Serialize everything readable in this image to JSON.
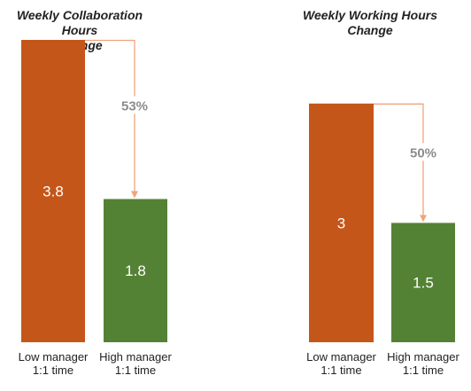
{
  "colors": {
    "low": "#c5561a",
    "high": "#548235",
    "arrow": "#f0a47a",
    "change_text": "#8c8c8c",
    "value_text": "#ffffff"
  },
  "chart_data": [
    {
      "type": "bar",
      "title_lines": [
        "Weekly Collaboration Hours",
        "Change"
      ],
      "categories": [
        {
          "lines": [
            "Low manager",
            "1:1 time"
          ]
        },
        {
          "lines": [
            "High manager",
            "1:1 time"
          ]
        }
      ],
      "values": [
        3.8,
        1.8
      ],
      "value_labels": [
        "3.8",
        "1.8"
      ],
      "change_label": "53%",
      "ylim": [
        0,
        3.8
      ]
    },
    {
      "type": "bar",
      "title_lines": [
        "Weekly Working Hours",
        "Change"
      ],
      "categories": [
        {
          "lines": [
            "Low manager",
            "1:1 time"
          ]
        },
        {
          "lines": [
            "High manager",
            "1:1 time"
          ]
        }
      ],
      "values": [
        3,
        1.5
      ],
      "value_labels": [
        "3",
        "1.5"
      ],
      "change_label": "50%",
      "ylim": [
        0,
        3.8
      ]
    }
  ]
}
